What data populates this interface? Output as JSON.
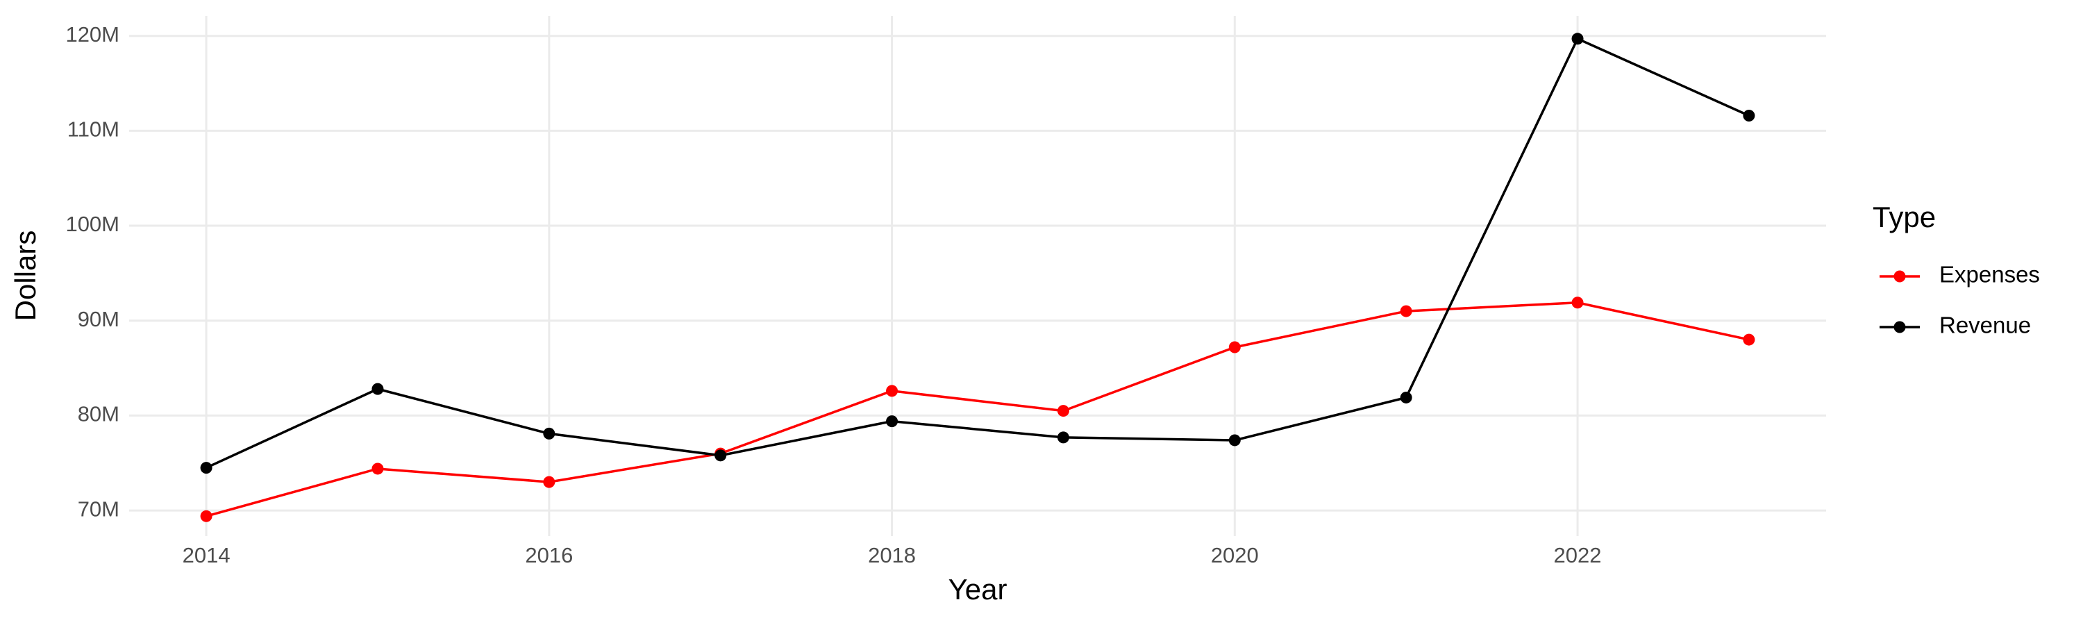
{
  "chart_data": {
    "type": "line",
    "x_label": "Year",
    "y_label": "Dollars",
    "legend_title": "Type",
    "x": [
      2014,
      2015,
      2016,
      2017,
      2018,
      2019,
      2020,
      2021,
      2022,
      2023
    ],
    "series": [
      {
        "name": "Expenses",
        "color": "#ff0000",
        "values": [
          69400000,
          74400000,
          73000000,
          76000000,
          82600000,
          80500000,
          87200000,
          91000000,
          91900000,
          88000000
        ]
      },
      {
        "name": "Revenue",
        "color": "#000000",
        "values": [
          74500000,
          82800000,
          78100000,
          75800000,
          79400000,
          77700000,
          77400000,
          81900000,
          119700000,
          111600000
        ]
      }
    ],
    "xlim": [
      2013.55,
      2023.45
    ],
    "xticks": [
      2014,
      2016,
      2018,
      2020,
      2022
    ],
    "ylim": [
      67300000,
      122100000
    ],
    "yticks": [
      {
        "value": 70000000,
        "label": "70M"
      },
      {
        "value": 80000000,
        "label": "80M"
      },
      {
        "value": 90000000,
        "label": "90M"
      },
      {
        "value": 100000000,
        "label": "100M"
      },
      {
        "value": 110000000,
        "label": "110M"
      },
      {
        "value": 120000000,
        "label": "120M"
      }
    ],
    "grid": true,
    "legend": "right"
  }
}
